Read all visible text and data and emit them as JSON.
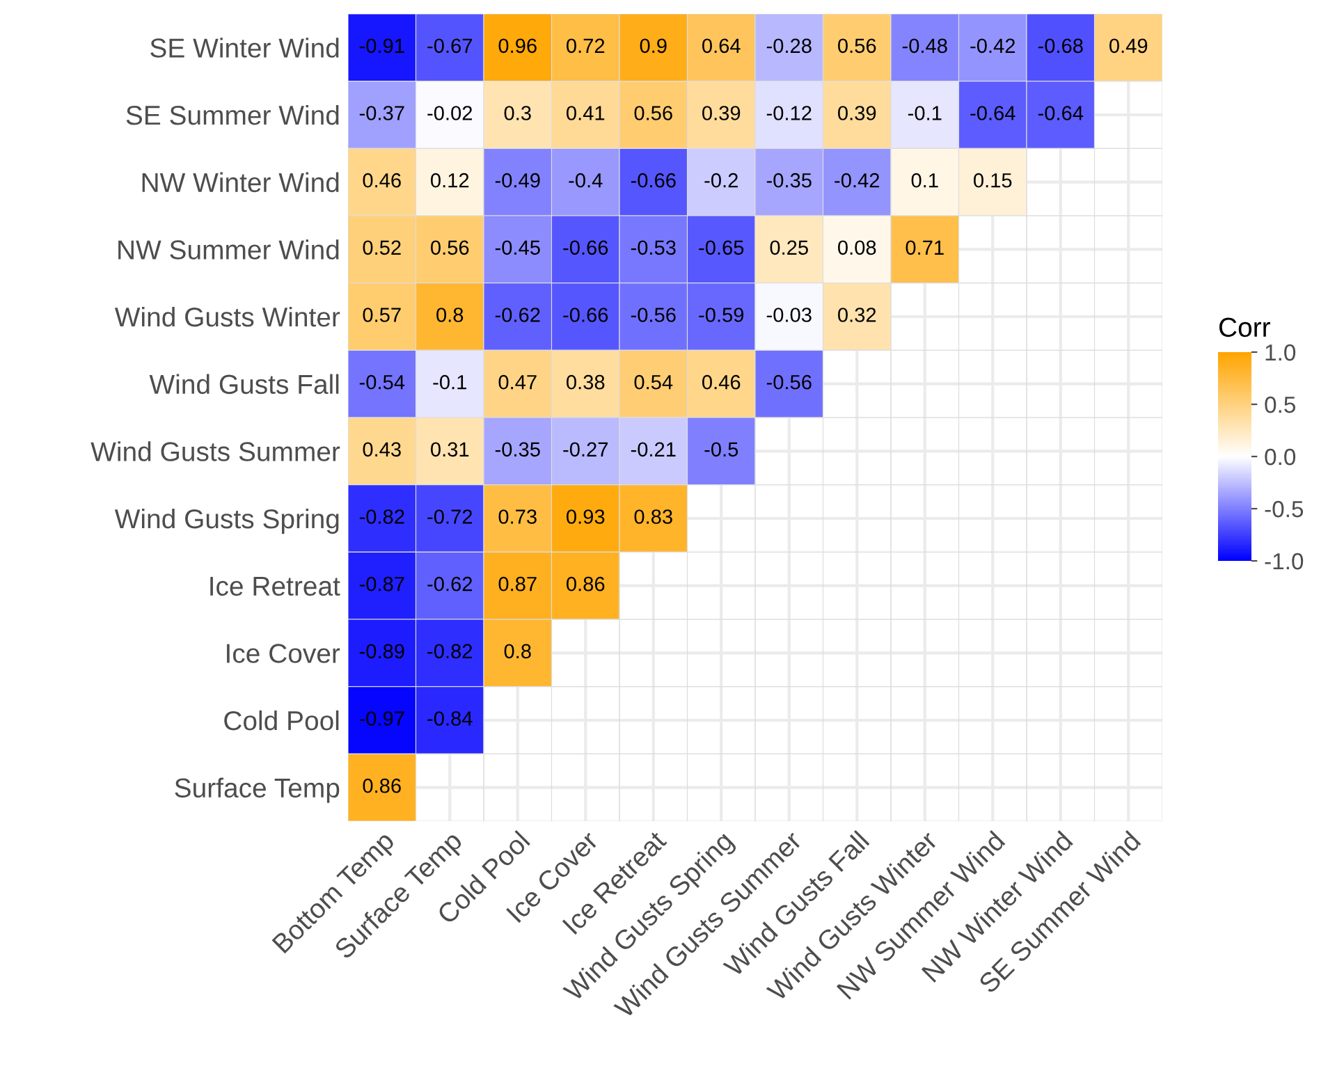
{
  "chart_data": {
    "type": "heatmap",
    "categories": [
      "Bottom Temp",
      "Surface Temp",
      "Cold Pool",
      "Ice Cover",
      "Ice Retreat",
      "Wind Gusts Spring",
      "Wind Gusts Summer",
      "Wind Gusts Fall",
      "Wind Gusts Winter",
      "NW Summer Wind",
      "NW Winter Wind",
      "SE Summer Wind"
    ],
    "y_categories": [
      "SE Winter Wind",
      "SE Summer Wind",
      "NW Winter Wind",
      "NW Summer Wind",
      "Wind Gusts Winter",
      "Wind Gusts Fall",
      "Wind Gusts Summer",
      "Wind Gusts Spring",
      "Ice Retreat",
      "Ice Cover",
      "Cold Pool",
      "Surface Temp"
    ],
    "cells": [
      [
        -0.91,
        -0.67,
        0.96,
        0.72,
        0.9,
        0.64,
        -0.28,
        0.56,
        -0.48,
        -0.42,
        -0.68,
        0.49
      ],
      [
        -0.37,
        -0.02,
        0.3,
        0.41,
        0.56,
        0.39,
        -0.12,
        0.39,
        -0.1,
        -0.64,
        -0.64,
        null
      ],
      [
        0.46,
        0.12,
        -0.49,
        -0.4,
        -0.66,
        -0.2,
        -0.35,
        -0.42,
        0.1,
        0.15,
        null,
        null
      ],
      [
        0.52,
        0.56,
        -0.45,
        -0.66,
        -0.53,
        -0.65,
        0.25,
        0.08,
        0.71,
        null,
        null,
        null
      ],
      [
        0.57,
        0.8,
        -0.62,
        -0.66,
        -0.56,
        -0.59,
        -0.03,
        0.32,
        null,
        null,
        null,
        null
      ],
      [
        -0.54,
        -0.1,
        0.47,
        0.38,
        0.54,
        0.46,
        -0.56,
        null,
        null,
        null,
        null,
        null
      ],
      [
        0.43,
        0.31,
        -0.35,
        -0.27,
        -0.21,
        -0.5,
        null,
        null,
        null,
        null,
        null,
        null
      ],
      [
        -0.82,
        -0.72,
        0.73,
        0.93,
        0.83,
        null,
        null,
        null,
        null,
        null,
        null,
        null
      ],
      [
        -0.87,
        -0.62,
        0.87,
        0.86,
        null,
        null,
        null,
        null,
        null,
        null,
        null,
        null
      ],
      [
        -0.89,
        -0.82,
        0.8,
        null,
        null,
        null,
        null,
        null,
        null,
        null,
        null,
        null
      ],
      [
        -0.97,
        -0.84,
        null,
        null,
        null,
        null,
        null,
        null,
        null,
        null,
        null,
        null
      ],
      [
        0.86,
        null,
        null,
        null,
        null,
        null,
        null,
        null,
        null,
        null,
        null,
        null
      ]
    ],
    "colors": [
      "#0000ff",
      "#ffffff",
      "#ffa500"
    ],
    "clabel": "Corr",
    "clim": [
      -1.0,
      1.0
    ],
    "cticks": [
      {
        "value": -1,
        "label": "-1.0"
      },
      {
        "value": -0.5,
        "label": "-0.5"
      },
      {
        "value": 0,
        "label": "0.0"
      },
      {
        "value": 0.5,
        "label": "0.5"
      },
      {
        "value": 1,
        "label": "1.0"
      }
    ],
    "data_labels": true,
    "grid": true
  }
}
